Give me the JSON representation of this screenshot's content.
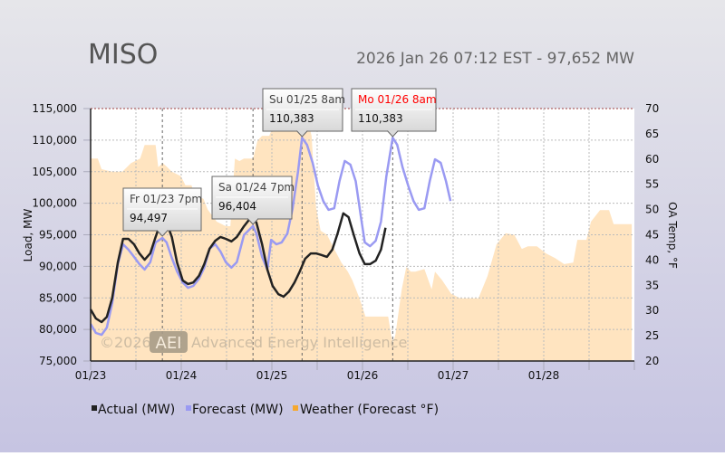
{
  "header": {
    "title": "MISO",
    "status": "2026 Jan 26 07:12 EST - 97,652 MW"
  },
  "watermark": {
    "copyright": "©2026",
    "logo": "AEI",
    "company": "Advanced Energy Intelligence"
  },
  "colors": {
    "actual": "#222222",
    "forecast": "#9a9af2",
    "weather": "#ffe4c0",
    "highlight": "#ff0000"
  },
  "chart_data": {
    "type": "line",
    "ylabel": "Load, MW",
    "y2label": "OA Temp, °F",
    "ylim": [
      75000,
      115000
    ],
    "y2lim": [
      20,
      70
    ],
    "xlim_hours_from_0123": [
      0,
      144
    ],
    "x_ticks": [
      "01/23",
      "01/24",
      "01/25",
      "01/26",
      "01/27",
      "01/28"
    ],
    "y_ticks": [
      "75,000",
      "80,000",
      "85,000",
      "90,000",
      "95,000",
      "100,000",
      "105,000",
      "110,000",
      "115,000"
    ],
    "y2_ticks": [
      "20",
      "25",
      "30",
      "35",
      "40",
      "45",
      "50",
      "55",
      "60",
      "65",
      "70"
    ],
    "grid": true,
    "legend": {
      "placement": "bottom",
      "items": [
        "Actual (MW)",
        "Forecast (MW)",
        "Weather (Forecast °F)"
      ]
    },
    "series": [
      {
        "name": "Actual (MW)",
        "points": [
          [
            0,
            83170
          ],
          [
            1.4,
            81740
          ],
          [
            2.9,
            81160
          ],
          [
            4.3,
            82000
          ],
          [
            5.7,
            85000
          ],
          [
            7.2,
            90600
          ],
          [
            8.6,
            94350
          ],
          [
            10,
            94350
          ],
          [
            11.5,
            93500
          ],
          [
            12.9,
            92050
          ],
          [
            14.3,
            91050
          ],
          [
            15.8,
            92050
          ],
          [
            17.2,
            94650
          ],
          [
            19,
            97700
          ],
          [
            20.1,
            96950
          ],
          [
            21.5,
            94650
          ],
          [
            22.9,
            90600
          ],
          [
            24.4,
            87750
          ],
          [
            25.8,
            87200
          ],
          [
            27.2,
            87450
          ],
          [
            28.7,
            88500
          ],
          [
            30.1,
            90350
          ],
          [
            31.5,
            92800
          ],
          [
            33,
            94050
          ],
          [
            34.4,
            94650
          ],
          [
            35.8,
            94350
          ],
          [
            37.3,
            93950
          ],
          [
            38.7,
            94650
          ],
          [
            40.6,
            96350
          ],
          [
            42.5,
            97800
          ],
          [
            43.9,
            96950
          ],
          [
            45.4,
            93500
          ],
          [
            46.8,
            89500
          ],
          [
            48.2,
            86900
          ],
          [
            49.7,
            85600
          ],
          [
            51.1,
            85200
          ],
          [
            52.5,
            86000
          ],
          [
            54,
            87450
          ],
          [
            55.4,
            89200
          ],
          [
            56.8,
            91200
          ],
          [
            58.3,
            92050
          ],
          [
            59.7,
            92050
          ],
          [
            61.1,
            91800
          ],
          [
            62.6,
            91500
          ],
          [
            64,
            92650
          ],
          [
            65.4,
            95200
          ],
          [
            66.9,
            98400
          ],
          [
            68.3,
            97800
          ],
          [
            69.7,
            94950
          ],
          [
            71.2,
            92050
          ],
          [
            72.6,
            90350
          ],
          [
            74,
            90350
          ],
          [
            75.5,
            90900
          ],
          [
            76.9,
            92650
          ],
          [
            78.1,
            96100
          ]
        ]
      },
      {
        "name": "Forecast (MW)",
        "points": [
          [
            0,
            80880
          ],
          [
            1.4,
            79450
          ],
          [
            2.9,
            79150
          ],
          [
            4.3,
            80300
          ],
          [
            5.7,
            84150
          ],
          [
            7.2,
            90350
          ],
          [
            8.6,
            93500
          ],
          [
            10,
            92650
          ],
          [
            11.5,
            91500
          ],
          [
            12.9,
            90350
          ],
          [
            14.3,
            89500
          ],
          [
            15.8,
            90650
          ],
          [
            17.2,
            93800
          ],
          [
            19,
            94497
          ],
          [
            20.1,
            93800
          ],
          [
            21.5,
            91350
          ],
          [
            22.9,
            89200
          ],
          [
            24.4,
            87450
          ],
          [
            25.8,
            86600
          ],
          [
            27.2,
            86900
          ],
          [
            28.7,
            88050
          ],
          [
            30.1,
            89800
          ],
          [
            31.5,
            92800
          ],
          [
            33,
            93500
          ],
          [
            34.4,
            92350
          ],
          [
            35.8,
            90650
          ],
          [
            37.3,
            89800
          ],
          [
            38.7,
            90650
          ],
          [
            40.6,
            94950
          ],
          [
            43,
            96404
          ],
          [
            43.9,
            95200
          ],
          [
            45.4,
            91500
          ],
          [
            46.8,
            89500
          ],
          [
            47.8,
            94200
          ],
          [
            49.2,
            93500
          ],
          [
            50.6,
            93800
          ],
          [
            52.1,
            95200
          ],
          [
            53.5,
            99200
          ],
          [
            54.9,
            104950
          ],
          [
            56,
            110383
          ],
          [
            57.3,
            109250
          ],
          [
            58.8,
            106400
          ],
          [
            60.2,
            102800
          ],
          [
            61.6,
            100350
          ],
          [
            63,
            98950
          ],
          [
            64.5,
            99200
          ],
          [
            65.9,
            103500
          ],
          [
            67.3,
            106700
          ],
          [
            68.8,
            106100
          ],
          [
            70.2,
            103500
          ],
          [
            71.6,
            97800
          ],
          [
            72.6,
            93800
          ],
          [
            74,
            93200
          ],
          [
            75.5,
            94050
          ],
          [
            76.9,
            97100
          ],
          [
            78.3,
            104250
          ],
          [
            80,
            110383
          ],
          [
            81.2,
            109250
          ],
          [
            82.6,
            105700
          ],
          [
            84.1,
            102800
          ],
          [
            85.5,
            100350
          ],
          [
            86.9,
            98950
          ],
          [
            88.4,
            99200
          ],
          [
            89.8,
            103500
          ],
          [
            91.2,
            106950
          ],
          [
            92.7,
            106400
          ],
          [
            94.1,
            103500
          ],
          [
            95.3,
            100350
          ]
        ]
      },
      {
        "name": "Weather (Forecast °F)",
        "points": [
          [
            0,
            60.1
          ],
          [
            1.9,
            60.1
          ],
          [
            2.9,
            58
          ],
          [
            5.7,
            57.5
          ],
          [
            8.4,
            57.5
          ],
          [
            10.7,
            59.2
          ],
          [
            13.1,
            60.1
          ],
          [
            14.3,
            62.8
          ],
          [
            17.2,
            62.8
          ],
          [
            17.9,
            58.4
          ],
          [
            19.1,
            59.2
          ],
          [
            20.3,
            58.4
          ],
          [
            21.5,
            57.5
          ],
          [
            23.9,
            56.6
          ],
          [
            25.1,
            54.8
          ],
          [
            26.7,
            54.8
          ],
          [
            27.5,
            53
          ],
          [
            29.9,
            52.1
          ],
          [
            31,
            50
          ],
          [
            33.4,
            47.6
          ],
          [
            35.8,
            46.7
          ],
          [
            37,
            46.7
          ],
          [
            38.2,
            60.1
          ],
          [
            39.4,
            59.6
          ],
          [
            40.6,
            60.1
          ],
          [
            43,
            60.1
          ],
          [
            44.2,
            63.7
          ],
          [
            45.4,
            64.6
          ],
          [
            47.3,
            64.6
          ],
          [
            47.8,
            65.5
          ],
          [
            50.1,
            68.2
          ],
          [
            52.5,
            70
          ],
          [
            54.9,
            70
          ],
          [
            57.3,
            68.2
          ],
          [
            58.5,
            64.6
          ],
          [
            59.7,
            50.3
          ],
          [
            60.9,
            45.8
          ],
          [
            62.6,
            45
          ],
          [
            64.5,
            42.2
          ],
          [
            66.4,
            39.5
          ],
          [
            68.1,
            37.7
          ],
          [
            69.3,
            36
          ],
          [
            71.2,
            32.4
          ],
          [
            72.8,
            28.8
          ],
          [
            78.8,
            28.8
          ],
          [
            80,
            23.4
          ],
          [
            80.7,
            25.2
          ],
          [
            82.4,
            34.2
          ],
          [
            83.6,
            38.6
          ],
          [
            84.8,
            37.7
          ],
          [
            86,
            37.7
          ],
          [
            88.4,
            38.2
          ],
          [
            90.3,
            34.2
          ],
          [
            91.2,
            37.7
          ],
          [
            93.1,
            36
          ],
          [
            95.5,
            33.3
          ],
          [
            97.9,
            32.4
          ],
          [
            102.7,
            32.4
          ],
          [
            105.1,
            36.8
          ],
          [
            107.5,
            43.1
          ],
          [
            109.9,
            45.3
          ],
          [
            112.2,
            45
          ],
          [
            114.2,
            42.2
          ],
          [
            115.8,
            42.7
          ],
          [
            118.2,
            42.7
          ],
          [
            120.6,
            41.3
          ],
          [
            123,
            40.4
          ],
          [
            125.4,
            39.2
          ],
          [
            127.8,
            39.5
          ],
          [
            128.9,
            44
          ],
          [
            131.3,
            44
          ],
          [
            132.5,
            47.6
          ],
          [
            134.9,
            49.9
          ],
          [
            137.3,
            49.9
          ],
          [
            138.5,
            47.1
          ],
          [
            143.3,
            47.1
          ]
        ]
      }
    ],
    "annotations": [
      {
        "label": "Fr 01/23 7pm",
        "value": "94,497",
        "hour": 19,
        "mw": 94497
      },
      {
        "label": "Sa 01/24 7pm",
        "value": "96,404",
        "hour": 43,
        "mw": 96404
      },
      {
        "label": "Su 01/25 8am",
        "value": "110,383",
        "hour": 56,
        "mw": 110383
      },
      {
        "label": "Mo 01/26 8am",
        "value": "110,383",
        "hour": 80,
        "mw": 110383,
        "highlight": true
      }
    ]
  }
}
